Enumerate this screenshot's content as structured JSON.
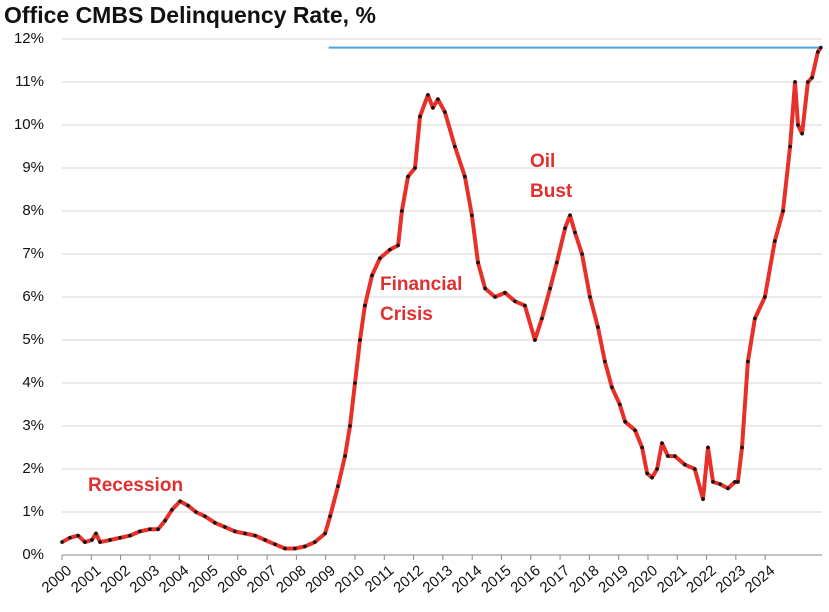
{
  "chart_data": {
    "type": "line",
    "title": "Office CMBS Delinquency Rate, %",
    "x": [
      2000.0,
      2000.27,
      2000.55,
      2000.78,
      2001.02,
      2001.16,
      2001.3,
      2001.64,
      2001.98,
      2002.32,
      2002.66,
      2003.0,
      2003.28,
      2003.52,
      2003.75,
      2004.03,
      2004.3,
      2004.57,
      2004.88,
      2005.22,
      2005.56,
      2005.9,
      2006.25,
      2006.59,
      2006.93,
      2007.27,
      2007.61,
      2007.95,
      2008.29,
      2008.63,
      2008.98,
      2009.15,
      2009.42,
      2009.66,
      2009.83,
      2010.0,
      2010.17,
      2010.34,
      2010.58,
      2010.85,
      2011.19,
      2011.47,
      2011.6,
      2011.81,
      2012.05,
      2012.22,
      2012.49,
      2012.66,
      2012.83,
      2013.07,
      2013.41,
      2013.75,
      2013.99,
      2014.2,
      2014.44,
      2014.78,
      2015.12,
      2015.46,
      2015.8,
      2016.14,
      2016.38,
      2016.66,
      2016.89,
      2017.17,
      2017.34,
      2017.51,
      2017.75,
      2018.02,
      2018.29,
      2018.53,
      2018.77,
      2019.04,
      2019.22,
      2019.56,
      2019.8,
      2019.97,
      2020.14,
      2020.31,
      2020.48,
      2020.68,
      2020.92,
      2021.26,
      2021.6,
      2021.88,
      2022.05,
      2022.22,
      2022.46,
      2022.73,
      2022.97,
      2023.07,
      2023.21,
      2023.41,
      2023.65,
      2023.99,
      2024.33,
      2024.61,
      2024.85,
      2025.02,
      2025.12,
      2025.26,
      2025.46,
      2025.6,
      2025.8,
      2025.9
    ],
    "series": [
      {
        "name": "Office CMBS Delinquency Rate",
        "color": "#e8302a",
        "marker_color": "#111111",
        "values": [
          0.3,
          0.4,
          0.45,
          0.3,
          0.35,
          0.5,
          0.3,
          0.35,
          0.4,
          0.45,
          0.55,
          0.6,
          0.6,
          0.8,
          1.05,
          1.25,
          1.15,
          1.0,
          0.9,
          0.75,
          0.65,
          0.55,
          0.5,
          0.45,
          0.35,
          0.25,
          0.15,
          0.15,
          0.2,
          0.3,
          0.5,
          0.9,
          1.6,
          2.3,
          3.0,
          4.0,
          5.0,
          5.8,
          6.5,
          6.9,
          7.1,
          7.2,
          8.0,
          8.8,
          9.0,
          10.2,
          10.7,
          10.4,
          10.6,
          10.3,
          9.5,
          8.8,
          7.9,
          6.8,
          6.2,
          6.0,
          6.1,
          5.9,
          5.8,
          5.0,
          5.5,
          6.2,
          6.8,
          7.6,
          7.9,
          7.5,
          7.0,
          6.0,
          5.3,
          4.5,
          3.9,
          3.5,
          3.1,
          2.9,
          2.5,
          1.9,
          1.8,
          2.0,
          2.6,
          2.3,
          2.3,
          2.1,
          2.0,
          1.3,
          2.5,
          1.7,
          1.65,
          1.55,
          1.7,
          1.7,
          2.5,
          4.5,
          5.5,
          6.0,
          7.3,
          8.0,
          9.5,
          11.0,
          10.0,
          9.8,
          11.0,
          11.1,
          11.7,
          11.8
        ]
      }
    ],
    "xlim": [
      2000,
      2025.94
    ],
    "xticks": [
      2000,
      2001,
      2002,
      2003,
      2004,
      2005,
      2006,
      2007,
      2008,
      2009,
      2010,
      2011,
      2012,
      2013,
      2014,
      2015,
      2016,
      2017,
      2018,
      2019,
      2020,
      2021,
      2022,
      2023,
      2024
    ],
    "ylim": [
      0,
      12
    ],
    "yticks": [
      {
        "value": 0,
        "label": "0%"
      },
      {
        "value": 1,
        "label": "1%"
      },
      {
        "value": 2,
        "label": "2%"
      },
      {
        "value": 3,
        "label": "3%"
      },
      {
        "value": 4,
        "label": "4%"
      },
      {
        "value": 5,
        "label": "5%"
      },
      {
        "value": 6,
        "label": "6%"
      },
      {
        "value": 7,
        "label": "7%"
      },
      {
        "value": 8,
        "label": "8%"
      },
      {
        "value": 9,
        "label": "9%"
      },
      {
        "value": 10,
        "label": "10%"
      },
      {
        "value": 11,
        "label": "11%"
      },
      {
        "value": 12,
        "label": "12%"
      }
    ],
    "grid": true,
    "reference_line": {
      "value": 11.8,
      "x": [
        2009.1,
        2025.94
      ],
      "color": "#4aa3d6"
    },
    "annotations": [
      {
        "lines": [
          "Recession"
        ]
      },
      {
        "lines": [
          "Financial",
          "Crisis"
        ]
      },
      {
        "lines": [
          "Oil",
          "Bust"
        ]
      }
    ]
  }
}
